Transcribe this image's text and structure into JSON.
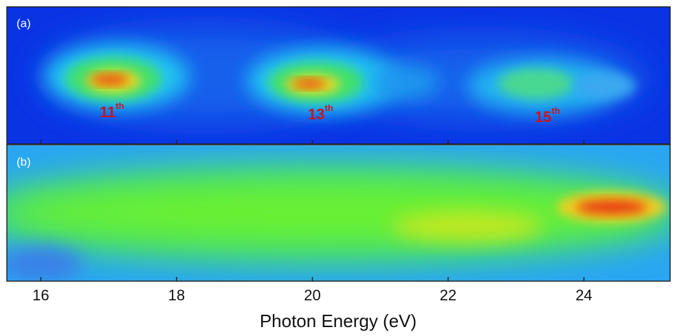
{
  "chart_data": {
    "type": "heatmap",
    "x_label": "Photon Energy (eV)",
    "xlim": [
      15.5,
      25.27
    ],
    "xticks": [
      16,
      18,
      20,
      22,
      24
    ],
    "panels": [
      {
        "label": "(a)",
        "annotations": [
          {
            "number": "11",
            "suffix": "th"
          },
          {
            "number": "13",
            "suffix": "th"
          },
          {
            "number": "15",
            "suffix": "th"
          }
        ]
      },
      {
        "label": "(b)"
      }
    ]
  }
}
